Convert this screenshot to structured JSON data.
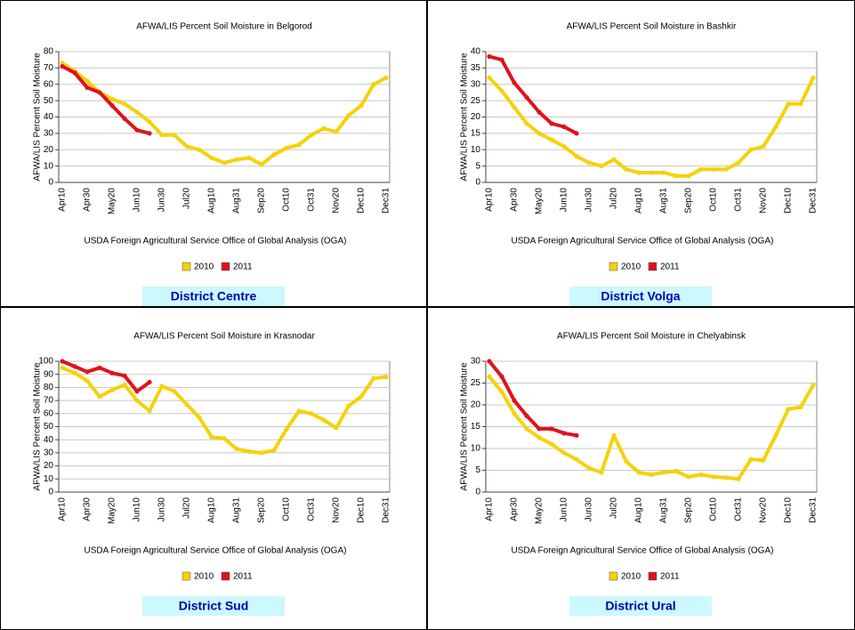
{
  "chart_data": [
    {
      "type": "line",
      "title": "AFWA/LIS Percent Soil Moisture in Belgorod",
      "y_label": "AFWA/LIS Percent Soil Moisture",
      "x_label": "USDA Foreign Agricultural Service Office of Global Analysis (OGA)",
      "district": "District Centre",
      "categories": [
        "Apr10",
        null,
        "Apr30",
        null,
        "May20",
        null,
        "Jun10",
        null,
        "Jun30",
        null,
        "Jul20",
        null,
        "Aug10",
        null,
        "Aug31",
        null,
        "Sep20",
        null,
        "Oct10",
        null,
        "Oct31",
        null,
        "Nov20",
        null,
        "Dec10",
        null,
        "Dec31"
      ],
      "ylim": [
        0,
        80
      ],
      "yticks": [
        0,
        10,
        20,
        30,
        40,
        50,
        60,
        70,
        80
      ],
      "grid": true,
      "series": [
        {
          "name": "2010",
          "color": "#f5d20a",
          "values": [
            73,
            68,
            62,
            55,
            51,
            48,
            43,
            37,
            29,
            29,
            22,
            20,
            15,
            12,
            14,
            15,
            11,
            17,
            21,
            23,
            29,
            33,
            31,
            41,
            47,
            60,
            64
          ]
        },
        {
          "name": "2011",
          "color": "#e0121b",
          "values": [
            71,
            67,
            58,
            55,
            47,
            39,
            32,
            30,
            null,
            null,
            null,
            null,
            null,
            null,
            null,
            null,
            null,
            null,
            null,
            null,
            null,
            null,
            null,
            null,
            null,
            null,
            null
          ]
        }
      ]
    },
    {
      "type": "line",
      "title": "AFWA/LIS Percent Soil Moisture in Bashkir",
      "y_label": "AFWA/LIS Percent Soil Moisture",
      "x_label": "USDA Foreign Agricultural Service Office of Global Analysis (OGA)",
      "district": "District Volga",
      "categories": [
        "Apr10",
        null,
        "Apr30",
        null,
        "May20",
        null,
        "Jun10",
        null,
        "Jun30",
        null,
        "Jul20",
        null,
        "Aug10",
        null,
        "Aug31",
        null,
        "Sep20",
        null,
        "Oct10",
        null,
        "Oct31",
        null,
        "Nov20",
        null,
        "Dec10",
        null,
        "Dec31"
      ],
      "ylim": [
        0,
        40
      ],
      "yticks": [
        0,
        5,
        10,
        15,
        20,
        25,
        30,
        35,
        40
      ],
      "grid": true,
      "series": [
        {
          "name": "2010",
          "color": "#f5d20a",
          "values": [
            32,
            28,
            23,
            18,
            15,
            13,
            11,
            8,
            6,
            5,
            7,
            4,
            3,
            3,
            3,
            2,
            2,
            4,
            4,
            4,
            6,
            10,
            11,
            17,
            24,
            24,
            32
          ]
        },
        {
          "name": "2011",
          "color": "#e0121b",
          "values": [
            38.5,
            37.5,
            30.5,
            26,
            21.5,
            18,
            17,
            15,
            null,
            null,
            null,
            null,
            null,
            null,
            null,
            null,
            null,
            null,
            null,
            null,
            null,
            null,
            null,
            null,
            null,
            null,
            null
          ]
        }
      ]
    },
    {
      "type": "line",
      "title": "AFWA/LIS Percent Soil Moisture in Krasnodar",
      "y_label": "AFWA/LIS Percent Soil Moisture",
      "x_label": "USDA Foreign Agricultural Service Office of Global Analysis (OGA)",
      "district": "District Sud",
      "categories": [
        "Apr10",
        null,
        "Apr30",
        null,
        "May20",
        null,
        "Jun10",
        null,
        "Jun30",
        null,
        "Jul20",
        null,
        "Aug10",
        null,
        "Aug31",
        null,
        "Sep20",
        null,
        "Oct10",
        null,
        "Oct31",
        null,
        "Nov20",
        null,
        "Dec10",
        null,
        "Dec31"
      ],
      "ylim": [
        0,
        100
      ],
      "yticks": [
        0,
        10,
        20,
        30,
        40,
        50,
        60,
        70,
        80,
        90,
        100
      ],
      "grid": true,
      "series": [
        {
          "name": "2010",
          "color": "#f5d20a",
          "values": [
            95,
            91,
            85,
            73,
            78,
            82,
            70,
            62,
            81,
            77,
            67,
            57,
            42,
            41,
            33,
            31,
            30,
            32,
            48,
            62,
            60,
            55,
            49,
            66,
            73,
            87,
            88
          ]
        },
        {
          "name": "2011",
          "color": "#e0121b",
          "values": [
            100,
            96,
            92,
            95,
            91,
            89,
            77,
            84,
            null,
            null,
            null,
            null,
            null,
            null,
            null,
            null,
            null,
            null,
            null,
            null,
            null,
            null,
            null,
            null,
            null,
            null,
            null
          ]
        }
      ]
    },
    {
      "type": "line",
      "title": "AFWA/LIS Percent Soil Moisture in Chelyabinsk",
      "y_label": "AFWA/LIS Percent Soil Moisture",
      "x_label": "USDA Foreign Agricultural Service Office of Global Analysis (OGA)",
      "district": "District Ural",
      "categories": [
        "Apr10",
        null,
        "Apr30",
        null,
        "May20",
        null,
        "Jun10",
        null,
        "Jun30",
        null,
        "Jul20",
        null,
        "Aug10",
        null,
        "Aug31",
        null,
        "Sep20",
        null,
        "Oct10",
        null,
        "Oct31",
        null,
        "Nov20",
        null,
        "Dec10",
        null,
        "Dec31"
      ],
      "ylim": [
        0,
        30
      ],
      "yticks": [
        0,
        5,
        10,
        15,
        20,
        25,
        30
      ],
      "grid": true,
      "series": [
        {
          "name": "2010",
          "color": "#f5d20a",
          "values": [
            26.5,
            23,
            18,
            14.5,
            12.5,
            11,
            9,
            7.5,
            5.5,
            4.5,
            13,
            7,
            4.5,
            4,
            4.5,
            4.8,
            3.5,
            4,
            3.5,
            3.3,
            3,
            7.5,
            7.3,
            13,
            19,
            19.5,
            24.5
          ]
        },
        {
          "name": "2011",
          "color": "#e0121b",
          "values": [
            30,
            26.5,
            21,
            17.5,
            14.5,
            14.5,
            13.5,
            13,
            null,
            null,
            null,
            null,
            null,
            null,
            null,
            null,
            null,
            null,
            null,
            null,
            null,
            null,
            null,
            null,
            null,
            null,
            null
          ]
        }
      ]
    }
  ]
}
